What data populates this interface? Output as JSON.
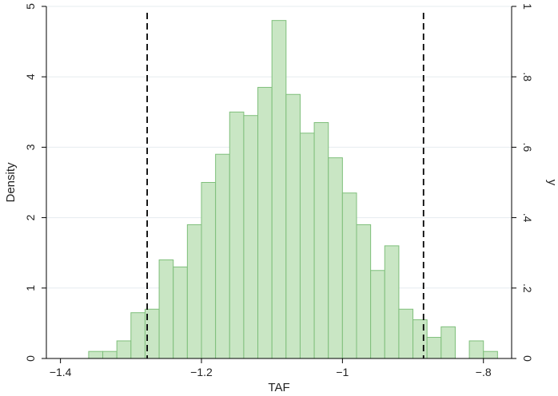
{
  "chart_data": {
    "type": "bar",
    "xlabel": "TAF",
    "ylabel": "Density",
    "y2label": "y",
    "xlim": [
      -1.42,
      -0.76
    ],
    "ylim": [
      0,
      5
    ],
    "y2lim": [
      0,
      1
    ],
    "grid": true,
    "bin_width": 0.02,
    "x_ticks": [
      {
        "value": -1.4,
        "label": "−1.4"
      },
      {
        "value": -1.2,
        "label": "−1.2"
      },
      {
        "value": -1.0,
        "label": "−1"
      },
      {
        "value": -0.8,
        "label": "−.8"
      }
    ],
    "y_ticks": [
      {
        "value": 0,
        "label": "0"
      },
      {
        "value": 1,
        "label": "1"
      },
      {
        "value": 2,
        "label": "2"
      },
      {
        "value": 3,
        "label": "3"
      },
      {
        "value": 4,
        "label": "4"
      },
      {
        "value": 5,
        "label": "5"
      }
    ],
    "y2_ticks": [
      {
        "value": 0,
        "label": "0"
      },
      {
        "value": 0.2,
        "label": ".2"
      },
      {
        "value": 0.4,
        "label": ".4"
      },
      {
        "value": 0.6,
        "label": ".6"
      },
      {
        "value": 0.8,
        "label": ".8"
      },
      {
        "value": 1,
        "label": "1"
      }
    ],
    "bins": [
      {
        "start": -1.36,
        "value": 0.1
      },
      {
        "start": -1.34,
        "value": 0.1
      },
      {
        "start": -1.32,
        "value": 0.25
      },
      {
        "start": -1.3,
        "value": 0.65
      },
      {
        "start": -1.28,
        "value": 0.7
      },
      {
        "start": -1.26,
        "value": 1.4
      },
      {
        "start": -1.24,
        "value": 1.3
      },
      {
        "start": -1.22,
        "value": 1.9
      },
      {
        "start": -1.2,
        "value": 2.5
      },
      {
        "start": -1.18,
        "value": 2.9
      },
      {
        "start": -1.16,
        "value": 3.5
      },
      {
        "start": -1.14,
        "value": 3.45
      },
      {
        "start": -1.12,
        "value": 3.85
      },
      {
        "start": -1.1,
        "value": 4.8
      },
      {
        "start": -1.08,
        "value": 3.75
      },
      {
        "start": -1.06,
        "value": 3.2
      },
      {
        "start": -1.04,
        "value": 3.35
      },
      {
        "start": -1.02,
        "value": 2.85
      },
      {
        "start": -1.0,
        "value": 2.35
      },
      {
        "start": -0.98,
        "value": 1.9
      },
      {
        "start": -0.96,
        "value": 1.25
      },
      {
        "start": -0.94,
        "value": 1.6
      },
      {
        "start": -0.92,
        "value": 0.7
      },
      {
        "start": -0.9,
        "value": 0.55
      },
      {
        "start": -0.88,
        "value": 0.3
      },
      {
        "start": -0.86,
        "value": 0.45
      },
      {
        "start": -0.82,
        "value": 0.25
      },
      {
        "start": -0.8,
        "value": 0.1
      }
    ],
    "vlines": [
      {
        "x": -1.277,
        "style": "dashed"
      },
      {
        "x": -0.885,
        "style": "dashed"
      }
    ],
    "colors": {
      "bar_fill": "#c9e6c4",
      "bar_stroke": "#7fbf7b",
      "vline": "#000000",
      "grid": "#e6ecef",
      "axis": "#000000",
      "text": "#222222"
    }
  }
}
